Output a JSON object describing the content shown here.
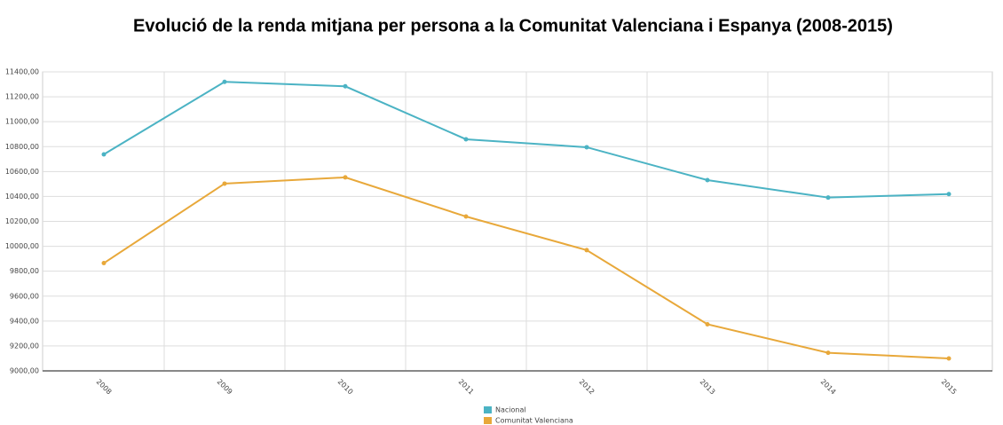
{
  "chart_data": {
    "type": "line",
    "title": "Evolució de la renda mitjana per persona a la Comunitat Valenciana i Espanya (2008-2015)",
    "categories": [
      "2008",
      "2009",
      "2010",
      "2011",
      "2012",
      "2013",
      "2014",
      "2015"
    ],
    "series": [
      {
        "name": "Nacional",
        "color": "#4bb3c4",
        "values": [
          10738,
          11320,
          11284,
          10859,
          10795,
          10531,
          10391,
          10419
        ]
      },
      {
        "name": "Comunitat Valenciana",
        "color": "#e8a83a",
        "values": [
          9865,
          10503,
          10553,
          10239,
          9969,
          9374,
          9145,
          9100
        ]
      }
    ],
    "ylim": [
      9000,
      11400
    ],
    "yticks": [
      {
        "value": 9000,
        "label": "9000,00"
      },
      {
        "value": 9200,
        "label": "9200,00"
      },
      {
        "value": 9400,
        "label": "9400,00"
      },
      {
        "value": 9600,
        "label": "9600,00"
      },
      {
        "value": 9800,
        "label": "9800,00"
      },
      {
        "value": 10000,
        "label": "10000,00"
      },
      {
        "value": 10200,
        "label": "10200,00"
      },
      {
        "value": 10400,
        "label": "10400,00"
      },
      {
        "value": 10600,
        "label": "10600,00"
      },
      {
        "value": 10800,
        "label": "10800,00"
      },
      {
        "value": 11000,
        "label": "11000,00"
      },
      {
        "value": 11200,
        "label": "11200,00"
      },
      {
        "value": 11400,
        "label": "11400,00"
      }
    ],
    "grid": true,
    "legend": "bottom"
  }
}
